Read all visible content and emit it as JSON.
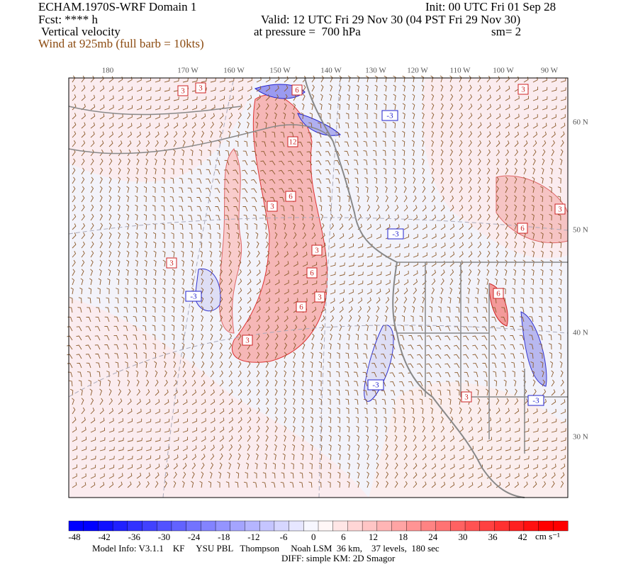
{
  "header": {
    "title": "ECHAM.1970S-WRF Domain 1",
    "init": "Init: 00 UTC Fri 01 Sep 28",
    "forecast": "Fcst: **** h",
    "valid": "Valid: 12 UTC Fri 29 Nov 30 (04 PST Fri 29 Nov 30)",
    "field": "Vertical velocity",
    "level": "at pressure =  700 hPa",
    "smoothing": "sm= 2",
    "wind": "Wind at 925mb (full barb = 10kts)"
  },
  "map": {
    "longitude_labels": [
      "180",
      "170 W",
      "160 W",
      "150 W",
      "140 W",
      "130 W",
      "120 W",
      "110 W",
      "100 W",
      "90 W"
    ],
    "latitude_labels": [
      "60 N",
      "50 N",
      "40 N",
      "30 N"
    ],
    "contour_labels": [
      "3",
      "3",
      "6",
      "-3",
      "12",
      "6",
      "3",
      "-3",
      "3",
      "6",
      "3",
      "-3",
      "3",
      "6",
      "3",
      "-3",
      "3",
      "-3",
      "3",
      "3",
      "6",
      "6"
    ]
  },
  "colorbar": {
    "ticks": [
      "-48",
      "-42",
      "-36",
      "-30",
      "-24",
      "-18",
      "-12",
      "-6",
      "0",
      "6",
      "12",
      "18",
      "24",
      "30",
      "36",
      "42"
    ],
    "unit": "cm s⁻¹"
  },
  "footer": {
    "model_info": "Model Info: V3.1.1    KF     YSU PBL   Thompson     Noah LSM  36 km,    37 levels,  180 sec",
    "diff": "DIFF: simple KM: 2D Smagor"
  }
}
